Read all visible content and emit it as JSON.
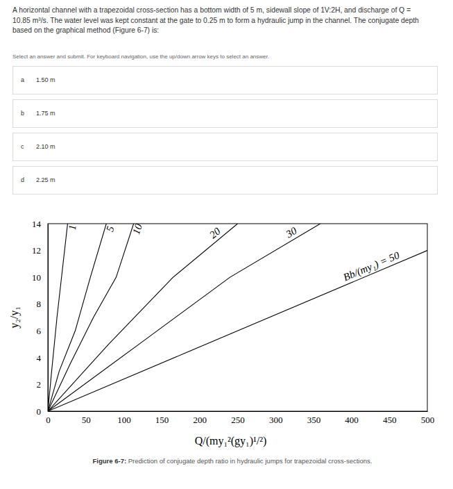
{
  "question": {
    "lines": [
      "A horizontal channel with a trapezoidal cross-section has a bottom width of 5 m, sidewall slope of 1V:2H, and discharge of Q =",
      "10.85 m³/s. The water level was kept constant at the gate to 0.25 m to form a hydraulic jump in the channel. The conjugate depth",
      "based on the graphical method (Figure 6-7) is:"
    ],
    "instruction": "Select an answer and submit. For keyboard navigation, use the up/down arrow keys to select an answer.",
    "options": [
      {
        "letter": "a",
        "text": "1.50 m"
      },
      {
        "letter": "b",
        "text": "1.75 m"
      },
      {
        "letter": "c",
        "text": "2.10 m"
      },
      {
        "letter": "d",
        "text": "2.25 m"
      }
    ]
  },
  "chart_data": {
    "type": "line",
    "x_label": "Q/(my₁²(gy₁)¹/²)",
    "y_label": "y₂/y₁",
    "xlim": [
      0,
      500
    ],
    "ylim": [
      0,
      14
    ],
    "xticks": [
      0,
      50,
      100,
      150,
      200,
      250,
      300,
      350,
      400,
      450,
      500
    ],
    "yticks": [
      0,
      2,
      4,
      6,
      8,
      10,
      12,
      14
    ],
    "grid": false,
    "legend": false,
    "color": "#000000",
    "series": [
      {
        "name": "1",
        "x": [
          0,
          5,
          12,
          19,
          26
        ],
        "values": [
          0,
          3,
          7,
          10.5,
          14
        ]
      },
      {
        "name": "5",
        "x": [
          0,
          15,
          36,
          56,
          77
        ],
        "values": [
          0,
          3,
          6,
          10,
          14
        ]
      },
      {
        "name": "10",
        "x": [
          0,
          30,
          60,
          90,
          113
        ],
        "values": [
          0,
          3.6,
          7,
          10,
          14
        ]
      },
      {
        "name": "20",
        "x": [
          0,
          80,
          165,
          250
        ],
        "values": [
          0,
          5,
          10,
          14
        ]
      },
      {
        "name": "30",
        "x": [
          0,
          120,
          240,
          359
        ],
        "values": [
          0,
          5,
          10,
          14
        ]
      },
      {
        "name": "Bb/(my₁) = 50",
        "x": [
          0,
          250,
          500
        ],
        "values": [
          0,
          6,
          12
        ]
      }
    ]
  },
  "caption": {
    "label": "Figure 6-7:",
    "text": " Prediction of conjugate depth ratio in hydraulic jumps for trapezoidal cross-sections."
  }
}
